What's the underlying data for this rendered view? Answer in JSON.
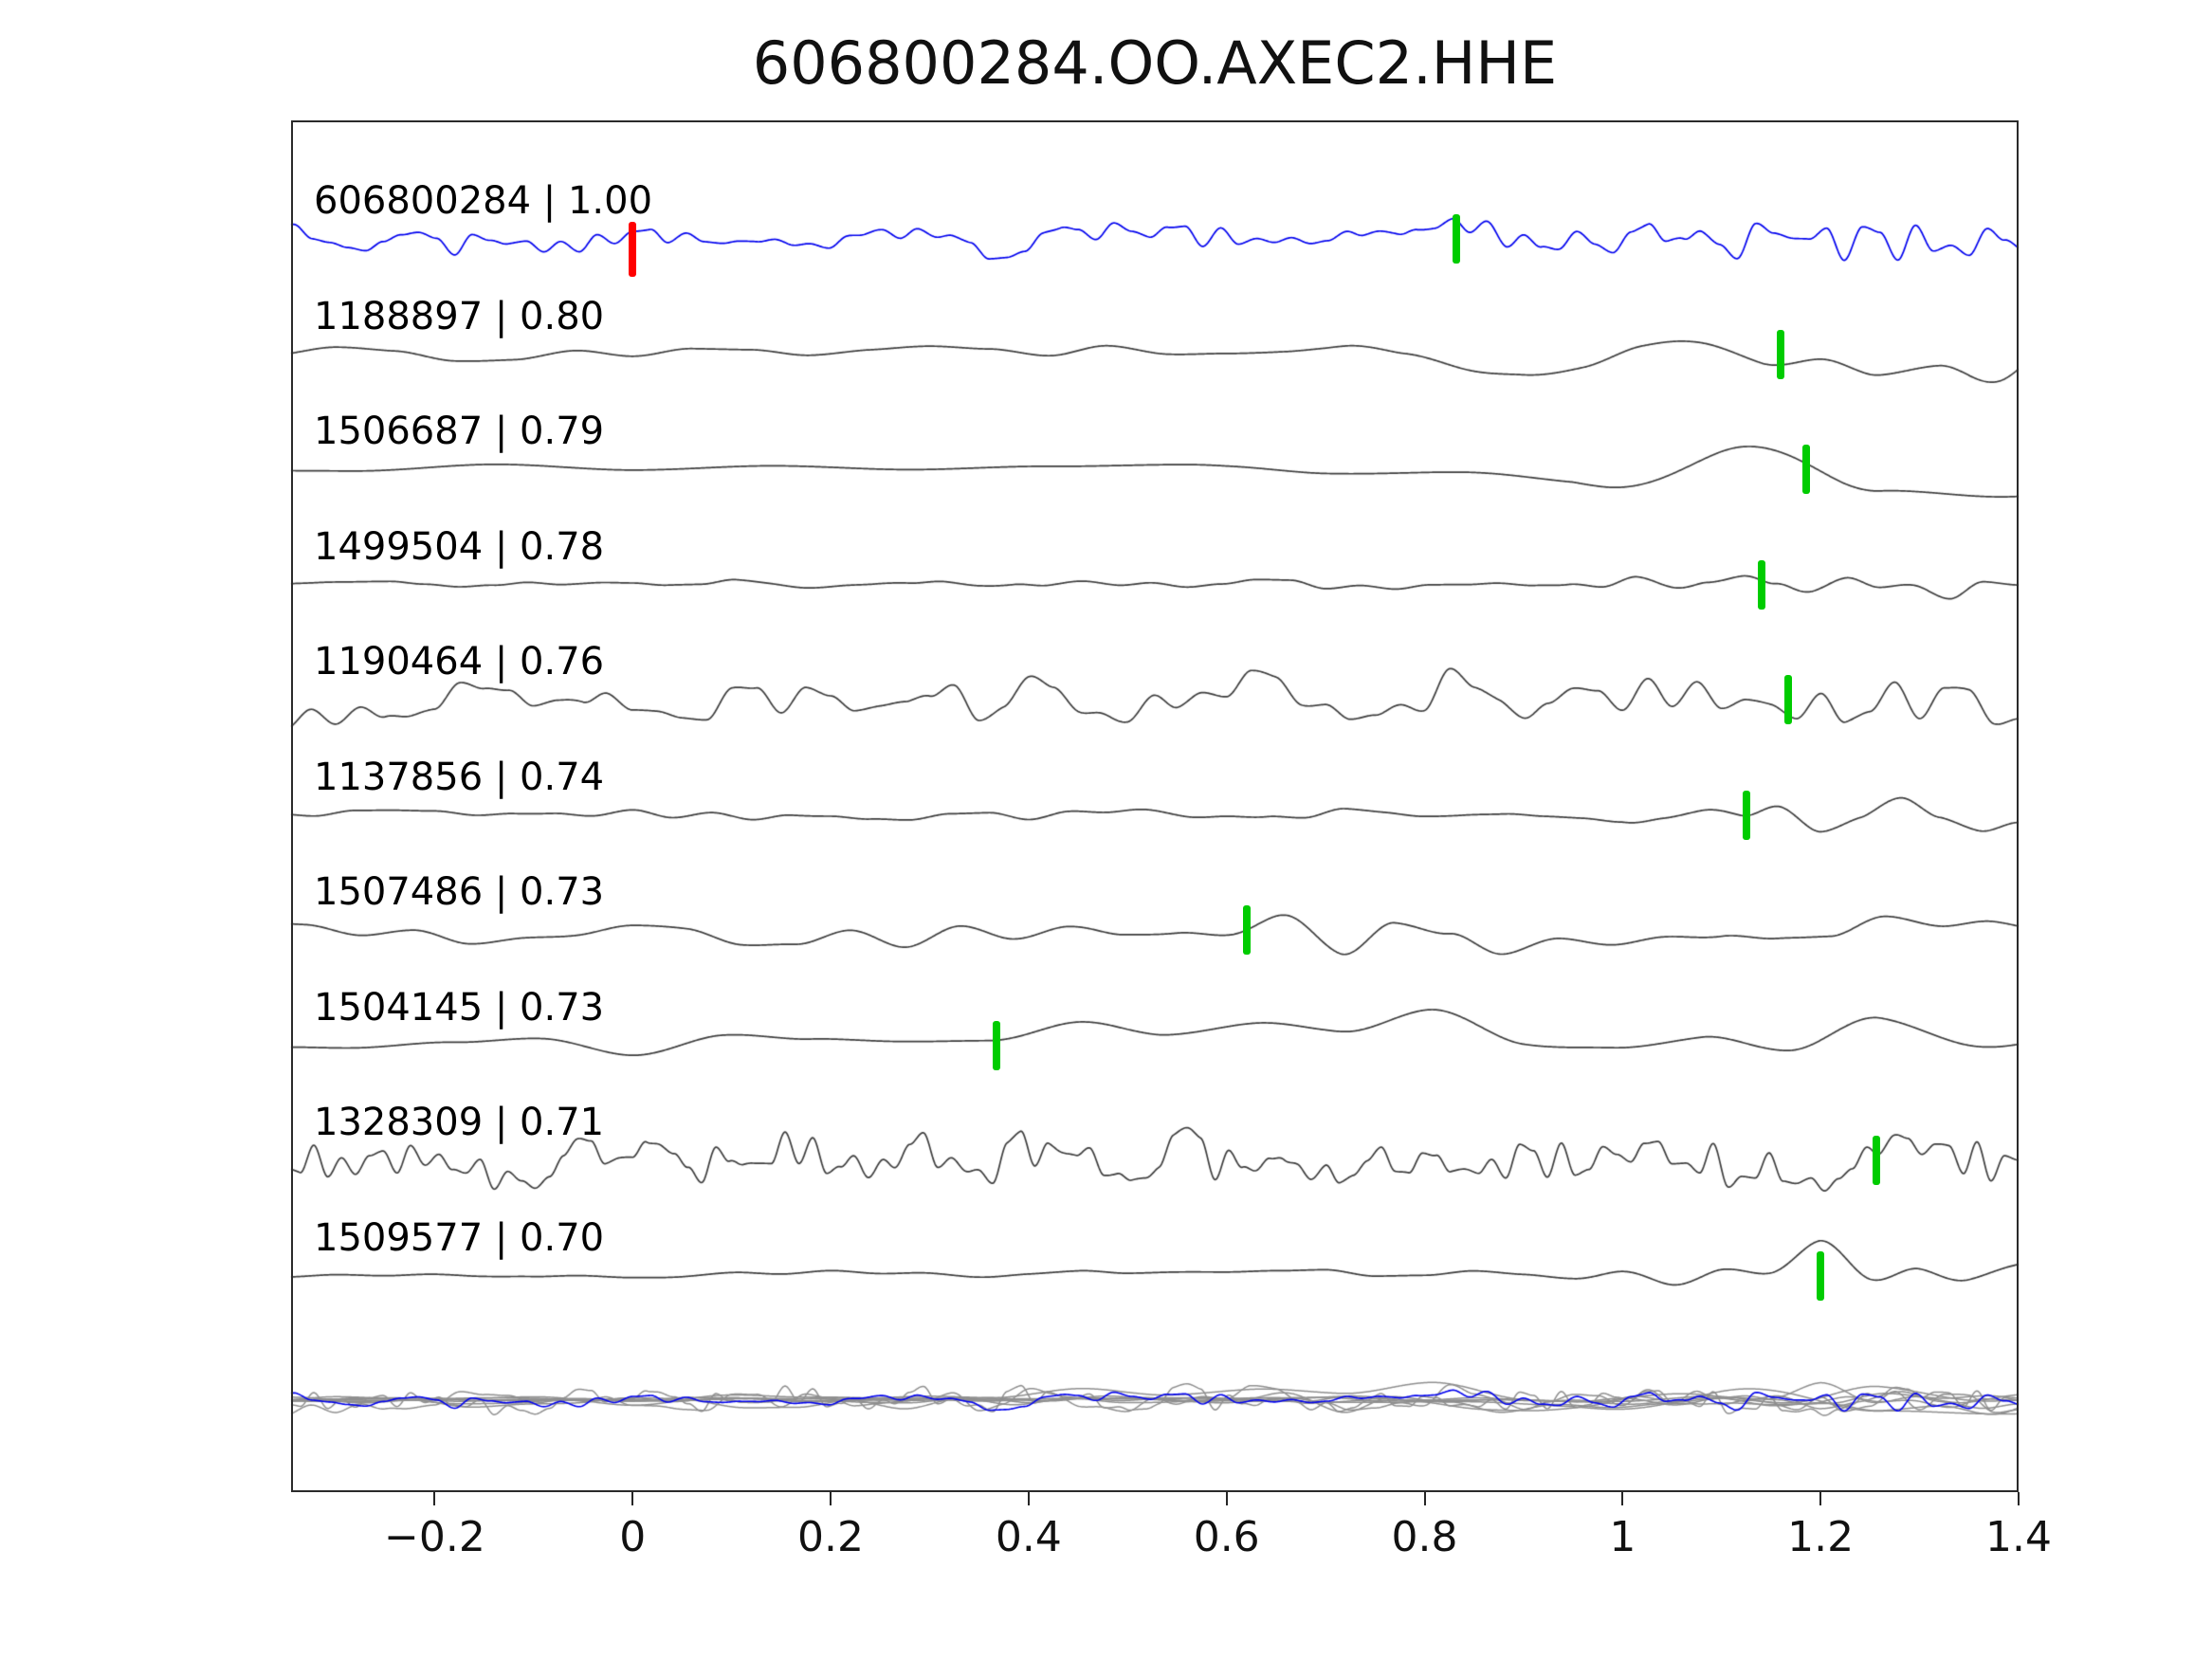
{
  "title": "606800284.OO.AXEC2.HHE",
  "colors": {
    "reference": "#0000ee",
    "trace": "#3d3d3d",
    "overlay_gray": "#8f8f8f",
    "marker_green": "#00cc00",
    "marker_red": "#ff0000",
    "axis": "#262626",
    "text": "#000000"
  },
  "chart_data": {
    "type": "line",
    "title": "606800284.OO.AXEC2.HHE",
    "xlabel": "",
    "ylabel": "",
    "xlim": [
      -0.345,
      1.4
    ],
    "grid": false,
    "legend": "none",
    "x_ticks": [
      {
        "value": -0.2,
        "label": "−0.2"
      },
      {
        "value": 0.0,
        "label": "0"
      },
      {
        "value": 0.2,
        "label": "0.2"
      },
      {
        "value": 0.4,
        "label": "0.4"
      },
      {
        "value": 0.6,
        "label": "0.6"
      },
      {
        "value": 0.8,
        "label": "0.8"
      },
      {
        "value": 1.0,
        "label": "1"
      },
      {
        "value": 1.2,
        "label": "1.2"
      },
      {
        "value": 1.4,
        "label": "1.4"
      }
    ],
    "traces": [
      {
        "id": "606800284",
        "correlation": "1.00",
        "label": "606800284 | 1.00",
        "color_role": "reference",
        "markers": [
          {
            "x": 0.0,
            "color": "red"
          },
          {
            "x": 0.832,
            "color": "green"
          }
        ],
        "synth": {
          "seed": 11,
          "amp": 26,
          "components": [
            [
              0.018,
              0.5
            ],
            [
              0.05,
              0.35
            ],
            [
              0.12,
              0.15
            ]
          ],
          "envelope": [
            [
              -0.35,
              1.0
            ],
            [
              1.05,
              1.0
            ],
            [
              1.15,
              1.6
            ],
            [
              1.25,
              1.7
            ],
            [
              1.4,
              1.1
            ]
          ]
        }
      },
      {
        "id": "1188897",
        "correlation": "0.80",
        "label": "1188897 | 0.80",
        "color_role": "match",
        "markers": [
          {
            "x": 1.16,
            "color": "green"
          }
        ],
        "synth": {
          "seed": 22,
          "amp": 30,
          "components": [
            [
              0.06,
              0.5
            ],
            [
              0.15,
              0.5
            ]
          ],
          "envelope": [
            [
              -0.35,
              0.35
            ],
            [
              0.7,
              0.45
            ],
            [
              0.95,
              1.1
            ],
            [
              1.1,
              1.4
            ],
            [
              1.25,
              1.8
            ],
            [
              1.4,
              1.5
            ]
          ]
        }
      },
      {
        "id": "1506687",
        "correlation": "0.79",
        "label": "1506687 | 0.79",
        "color_role": "match",
        "markers": [
          {
            "x": 1.185,
            "color": "green"
          }
        ],
        "synth": {
          "seed": 33,
          "amp": 55,
          "components": [
            [
              0.14,
              0.7
            ],
            [
              0.3,
              0.3
            ]
          ],
          "envelope": [
            [
              -0.35,
              0.12
            ],
            [
              0.6,
              0.18
            ],
            [
              0.95,
              0.5
            ],
            [
              1.1,
              1.2
            ],
            [
              1.22,
              1.6
            ],
            [
              1.4,
              1.3
            ]
          ]
        }
      },
      {
        "id": "1499504",
        "correlation": "0.78",
        "label": "1499504 | 0.78",
        "color_role": "match",
        "markers": [
          {
            "x": 1.14,
            "color": "green"
          }
        ],
        "synth": {
          "seed": 44,
          "amp": 40,
          "components": [
            [
              0.035,
              0.45
            ],
            [
              0.09,
              0.55
            ]
          ],
          "envelope": [
            [
              -0.35,
              0.18
            ],
            [
              0.9,
              0.25
            ],
            [
              1.05,
              0.55
            ],
            [
              1.14,
              1.3
            ],
            [
              1.24,
              0.9
            ],
            [
              1.4,
              0.45
            ]
          ]
        }
      },
      {
        "id": "1190464",
        "correlation": "0.76",
        "label": "1190464 | 0.76",
        "color_role": "match",
        "markers": [
          {
            "x": 1.167,
            "color": "green"
          }
        ],
        "synth": {
          "seed": 55,
          "amp": 40,
          "components": [
            [
              0.025,
              0.55
            ],
            [
              0.07,
              0.45
            ]
          ],
          "envelope": [
            [
              -0.35,
              1.0
            ],
            [
              1.0,
              0.95
            ],
            [
              1.15,
              1.25
            ],
            [
              1.4,
              1.0
            ]
          ]
        }
      },
      {
        "id": "1137856",
        "correlation": "0.74",
        "label": "1137856 | 0.74",
        "color_role": "match",
        "markers": [
          {
            "x": 1.125,
            "color": "green"
          }
        ],
        "synth": {
          "seed": 66,
          "amp": 40,
          "components": [
            [
              0.04,
              0.5
            ],
            [
              0.1,
              0.5
            ]
          ],
          "envelope": [
            [
              -0.35,
              0.2
            ],
            [
              1.0,
              0.28
            ],
            [
              1.12,
              0.95
            ],
            [
              1.2,
              1.1
            ],
            [
              1.32,
              0.7
            ],
            [
              1.4,
              0.55
            ]
          ]
        }
      },
      {
        "id": "1507486",
        "correlation": "0.73",
        "label": "1507486 | 0.73",
        "color_role": "match",
        "markers": [
          {
            "x": 0.62,
            "color": "green"
          }
        ],
        "synth": {
          "seed": 77,
          "amp": 40,
          "components": [
            [
              0.055,
              0.55
            ],
            [
              0.13,
              0.45
            ]
          ],
          "envelope": [
            [
              -0.35,
              0.38
            ],
            [
              0.45,
              0.55
            ],
            [
              0.65,
              1.25
            ],
            [
              0.85,
              1.2
            ],
            [
              1.05,
              0.85
            ],
            [
              1.4,
              0.55
            ]
          ]
        }
      },
      {
        "id": "1504145",
        "correlation": "0.73",
        "label": "1504145 | 0.73",
        "color_role": "match",
        "markers": [
          {
            "x": 0.368,
            "color": "green"
          }
        ],
        "synth": {
          "seed": 88,
          "amp": 45,
          "components": [
            [
              0.09,
              0.6
            ],
            [
              0.2,
              0.4
            ]
          ],
          "envelope": [
            [
              -0.35,
              0.25
            ],
            [
              0.3,
              0.45
            ],
            [
              0.5,
              0.7
            ],
            [
              0.7,
              1.25
            ],
            [
              0.95,
              1.1
            ],
            [
              1.15,
              0.8
            ],
            [
              1.4,
              1.0
            ]
          ]
        }
      },
      {
        "id": "1328309",
        "correlation": "0.71",
        "label": "1328309 | 0.71",
        "color_role": "match",
        "markers": [
          {
            "x": 1.256,
            "color": "green"
          }
        ],
        "synth": {
          "seed": 99,
          "amp": 38,
          "components": [
            [
              0.014,
              0.6
            ],
            [
              0.04,
              0.4
            ]
          ],
          "envelope": [
            [
              -0.35,
              1.0
            ],
            [
              1.4,
              1.0
            ]
          ]
        }
      },
      {
        "id": "1509577",
        "correlation": "0.70",
        "label": "1509577 | 0.70",
        "color_role": "match",
        "markers": [
          {
            "x": 1.2,
            "color": "green"
          }
        ],
        "synth": {
          "seed": 110,
          "amp": 34,
          "components": [
            [
              0.05,
              0.5
            ],
            [
              0.12,
              0.5
            ]
          ],
          "envelope": [
            [
              -0.35,
              0.2
            ],
            [
              0.95,
              0.3
            ],
            [
              1.08,
              0.7
            ],
            [
              1.2,
              1.25
            ],
            [
              1.32,
              1.3
            ],
            [
              1.4,
              1.0
            ]
          ]
        }
      }
    ],
    "overlay": {
      "description": "all matched traces overlaid in gray with reference trace in blue",
      "amp_scale": 0.5
    }
  }
}
